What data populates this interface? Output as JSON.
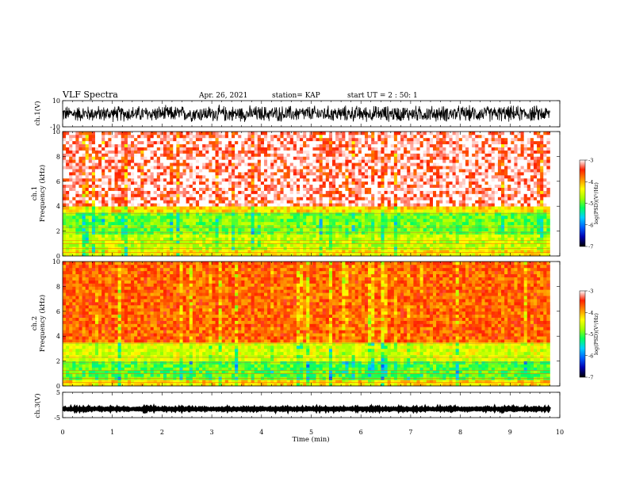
{
  "header": {
    "title": "VLF Spectra",
    "date": "Apr. 26, 2021",
    "station": "station= KAP",
    "start": "start  UT  =   2 : 50: 1"
  },
  "chart_data": [
    {
      "type": "line",
      "panel": "ch1-waveform",
      "ylabel": "ch.1(V)",
      "ylim": [
        -10,
        10
      ],
      "yticks": [
        "10",
        "-10"
      ],
      "xlim": [
        0,
        10
      ],
      "note_series": "dense noise-like waveform spanning roughly -7 to +7 V over 0–9.8 min"
    },
    {
      "type": "heatmap",
      "panel": "ch1-spectrogram",
      "ylabel": "ch.1\nFrequency  (kHz)",
      "ylim": [
        0,
        10
      ],
      "yticks": [
        "0",
        "2",
        "4",
        "6",
        "8",
        "10"
      ],
      "xlim": [
        0,
        10
      ],
      "data_extent_min": 9.8,
      "bands": [
        {
          "from_khz": 0,
          "to_khz": 0.6,
          "level": -4.3
        },
        {
          "from_khz": 0.6,
          "to_khz": 1.8,
          "level": -4.6
        },
        {
          "from_khz": 1.8,
          "to_khz": 3.4,
          "level": -4.9
        },
        {
          "from_khz": 3.4,
          "to_khz": 4.0,
          "level": -4.2
        },
        {
          "from_khz": 4.0,
          "to_khz": 10,
          "level": -3.4
        }
      ],
      "colorbar": {
        "label": "log(PSD)(V²/Hz)",
        "range": [
          -7,
          -3
        ],
        "ticks": [
          "-3",
          "-4",
          "-5",
          "-6",
          "-7"
        ]
      }
    },
    {
      "type": "heatmap",
      "panel": "ch2-spectrogram",
      "ylabel": "ch.2\nFrequency  (kHz)",
      "ylim": [
        0,
        10
      ],
      "yticks": [
        "0",
        "2",
        "4",
        "6",
        "8",
        "10"
      ],
      "xlim": [
        0,
        10
      ],
      "data_extent_min": 9.8,
      "bands": [
        {
          "from_khz": 0,
          "to_khz": 0.4,
          "level": -4.2
        },
        {
          "from_khz": 0.4,
          "to_khz": 2.0,
          "level": -5.0
        },
        {
          "from_khz": 2.0,
          "to_khz": 3.5,
          "level": -4.5
        },
        {
          "from_khz": 3.5,
          "to_khz": 10,
          "level": -3.7
        }
      ],
      "colorbar": {
        "label": "log(PSD)(V²/Hz)",
        "range": [
          -7,
          -3
        ],
        "ticks": [
          "-3",
          "-4",
          "-5",
          "-6",
          "-7"
        ]
      }
    },
    {
      "type": "line",
      "panel": "ch3-waveform",
      "ylabel": "ch.3(V)",
      "ylim": [
        -5,
        5
      ],
      "yticks": [
        "5",
        "-5"
      ],
      "xlim": [
        0,
        10
      ],
      "xlabel": "Time  (min)",
      "xticks": [
        "0",
        "1",
        "2",
        "3",
        "4",
        "5",
        "6",
        "7",
        "8",
        "9",
        "10"
      ],
      "note_series": "near-flat band around -1.6 V spanning 0–9.8 min"
    }
  ],
  "colors": {
    "colormap": [
      "#000000",
      "#0000b0",
      "#0060ff",
      "#00d0ff",
      "#00ff60",
      "#a0ff00",
      "#ffff00",
      "#ff9000",
      "#ff2000",
      "#ffffff"
    ]
  }
}
